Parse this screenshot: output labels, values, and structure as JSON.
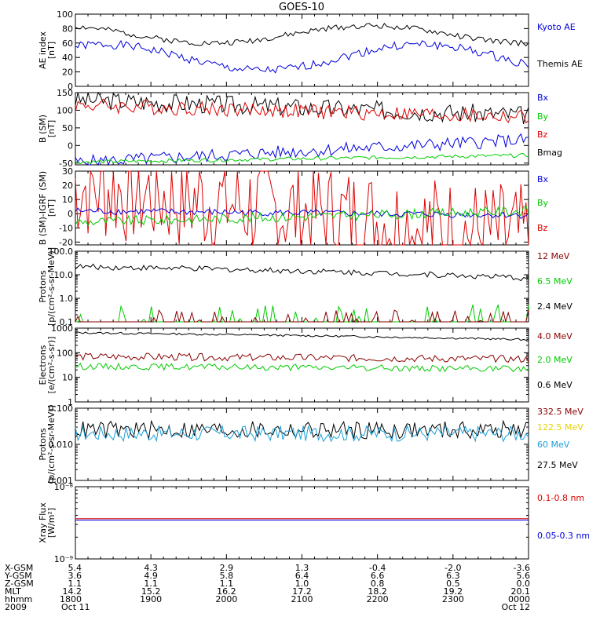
{
  "title": "GOES-10",
  "colors": {
    "black": "#000000",
    "blue": "#0000dd",
    "green": "#00cc00",
    "red": "#dd0000",
    "darkred": "#880000",
    "yellow": "#e6d200",
    "cyan": "#1aa0d8"
  },
  "chart_data": [
    {
      "type": "line",
      "ylabel_lines": [
        "AE index",
        "[nT]"
      ],
      "ylim": [
        0,
        100
      ],
      "yticks": [
        "0",
        "20",
        "40",
        "60",
        "80",
        "100"
      ],
      "legend": [
        {
          "label": "Kyoto AE",
          "color": "blue"
        },
        {
          "label": "Themis AE",
          "color": "black"
        }
      ],
      "series": [
        {
          "name": "Kyoto AE",
          "color": "blue",
          "base": 40,
          "amp": 18,
          "noise": 6,
          "seed": 1
        },
        {
          "name": "Themis AE",
          "color": "black",
          "base": 72,
          "amp": 12,
          "noise": 4,
          "seed": 2
        }
      ]
    },
    {
      "type": "line",
      "ylabel_lines": [
        "B (SM)",
        "[nT]"
      ],
      "ylim": [
        -55,
        150
      ],
      "yticks": [
        "-50",
        "0",
        "50",
        "100",
        "150"
      ],
      "legend": [
        {
          "label": "Bx",
          "color": "blue"
        },
        {
          "label": "By",
          "color": "green"
        },
        {
          "label": "Bz",
          "color": "red"
        },
        {
          "label": "Bmag",
          "color": "black"
        }
      ],
      "series": [
        {
          "name": "Bmag",
          "color": "black",
          "start": 130,
          "end": 86,
          "noise": 0.6,
          "seed": 3
        },
        {
          "name": "Bz",
          "color": "red",
          "start": 115,
          "end": 80,
          "noise": 0.6,
          "seed": 4
        },
        {
          "name": "Bx",
          "color": "blue",
          "start": -48,
          "end": 16,
          "noise": 0.3,
          "seed": 5
        },
        {
          "name": "By",
          "color": "green",
          "start": -47,
          "end": -28,
          "noise": 0.3,
          "seed": 6
        }
      ]
    },
    {
      "type": "line",
      "ylabel_lines": [
        "B (SM)-IGRF (SM)",
        "[nT]"
      ],
      "ylim": [
        -22,
        30
      ],
      "yticks": [
        "-20",
        "-10",
        "0",
        "10",
        "20",
        "30"
      ],
      "legend": [
        {
          "label": "Bx",
          "color": "blue"
        },
        {
          "label": "By",
          "color": "green"
        },
        {
          "label": "Bz",
          "color": "red"
        }
      ],
      "series": [
        {
          "name": "Bz",
          "color": "red",
          "start": 20,
          "end": -18,
          "noise": 1.0,
          "seed": 7
        },
        {
          "name": "Bx",
          "color": "blue",
          "start": 2,
          "end": -1,
          "noise": 0.6,
          "seed": 8
        },
        {
          "name": "By",
          "color": "green",
          "start": -6,
          "end": 2,
          "noise": 0.5,
          "seed": 9
        }
      ]
    },
    {
      "type": "line",
      "log": true,
      "ylabel_lines": [
        "Protons",
        "[p/(cm²-s-sr-MeV)]"
      ],
      "ylim": [
        0.1,
        100
      ],
      "yticks": [
        "0.1",
        "1.0",
        "10.0",
        "100.0"
      ],
      "legend": [
        {
          "label": "12 MeV",
          "color": "darkred"
        },
        {
          "label": "6.5 MeV",
          "color": "green"
        },
        {
          "label": "2.4 MeV",
          "color": "black"
        }
      ],
      "series": [
        {
          "name": "2.4 MeV",
          "color": "black",
          "start": 22,
          "end": 7,
          "noise": 0.12,
          "seed": 10
        },
        {
          "name": "6.5 MeV",
          "color": "green",
          "spiky": true,
          "peak": 0.45,
          "seed": 11
        },
        {
          "name": "12 MeV",
          "color": "darkred",
          "spiky": true,
          "peak": 0.22,
          "seed": 12
        }
      ]
    },
    {
      "type": "line",
      "log": true,
      "ylabel_lines": [
        "Electrons",
        "[e/(cm²-s-sr)]"
      ],
      "ylim": [
        1,
        1000
      ],
      "yticks": [
        "1",
        "10",
        "100",
        "1000"
      ],
      "legend": [
        {
          "label": "4.0 MeV",
          "color": "darkred"
        },
        {
          "label": "2.0 MeV",
          "color": "green"
        },
        {
          "label": "0.6 MeV",
          "color": "black"
        }
      ],
      "series": [
        {
          "name": "0.6 MeV",
          "color": "black",
          "start": 650,
          "end": 340,
          "noise": 0.04,
          "seed": 13
        },
        {
          "name": "4.0 MeV",
          "color": "darkred",
          "start": 70,
          "end": 55,
          "noise": 0.15,
          "seed": 14
        },
        {
          "name": "2.0 MeV",
          "color": "green",
          "start": 28,
          "end": 22,
          "noise": 0.13,
          "seed": 15
        }
      ]
    },
    {
      "type": "line",
      "log": true,
      "ylabel_lines": [
        "Protons",
        "[p/(cm²-s-sr-MeV)]"
      ],
      "ylim": [
        0.001,
        0.1
      ],
      "yticks": [
        "0.001",
        "0.010",
        "0.100"
      ],
      "legend": [
        {
          "label": "332.5 MeV",
          "color": "darkred"
        },
        {
          "label": "122.5 MeV",
          "color": "yellow"
        },
        {
          "label": "60 MeV",
          "color": "cyan"
        },
        {
          "label": "27.5 MeV",
          "color": "black"
        }
      ],
      "series": [
        {
          "name": "27.5 MeV",
          "color": "black",
          "start": 0.025,
          "end": 0.025,
          "noise": 0.25,
          "seed": 16
        },
        {
          "name": "60 MeV",
          "color": "cyan",
          "start": 0.02,
          "end": 0.02,
          "noise": 0.22,
          "seed": 17
        }
      ]
    },
    {
      "type": "line",
      "log": true,
      "ylabel_lines": [
        "Xray Flux",
        "[W/m²]"
      ],
      "ylim": [
        1e-09,
        1e-08
      ],
      "yticks": [
        "10⁻⁹",
        "10⁻⁸"
      ],
      "legend": [
        {
          "label": "0.1-0.8 nm",
          "color": "red"
        },
        {
          "label": "0.05-0.3 nm",
          "color": "blue"
        }
      ],
      "series": [
        {
          "name": "0.1-0.8 nm",
          "color": "red",
          "start": 3.6e-09,
          "end": 3.6e-09,
          "noise": 0.0,
          "seed": 18
        },
        {
          "name": "0.05-0.3 nm",
          "color": "blue",
          "start": 3.45e-09,
          "end": 3.45e-09,
          "noise": 0.0,
          "seed": 19
        }
      ]
    }
  ],
  "orbit_table": {
    "row_labels": [
      "X-GSM",
      "Y-GSM",
      "Z-GSM",
      "MLT",
      "hhmm",
      "2009"
    ],
    "columns": [
      [
        "5.4",
        "3.6",
        "1.1",
        "14.2",
        "1800",
        "Oct 11"
      ],
      [
        "4.3",
        "4.9",
        "1.1",
        "15.2",
        "1900",
        ""
      ],
      [
        "2.9",
        "5.8",
        "1.1",
        "16.2",
        "2000",
        ""
      ],
      [
        "1.3",
        "6.4",
        "1.0",
        "17.2",
        "2100",
        ""
      ],
      [
        "-0.4",
        "6.6",
        "0.8",
        "18.2",
        "2200",
        ""
      ],
      [
        "-2.0",
        "6.3",
        "0.5",
        "19.2",
        "2300",
        ""
      ],
      [
        "-3.6",
        "5.6",
        "0.0",
        "20.1",
        "0000",
        "Oct 12"
      ]
    ]
  }
}
